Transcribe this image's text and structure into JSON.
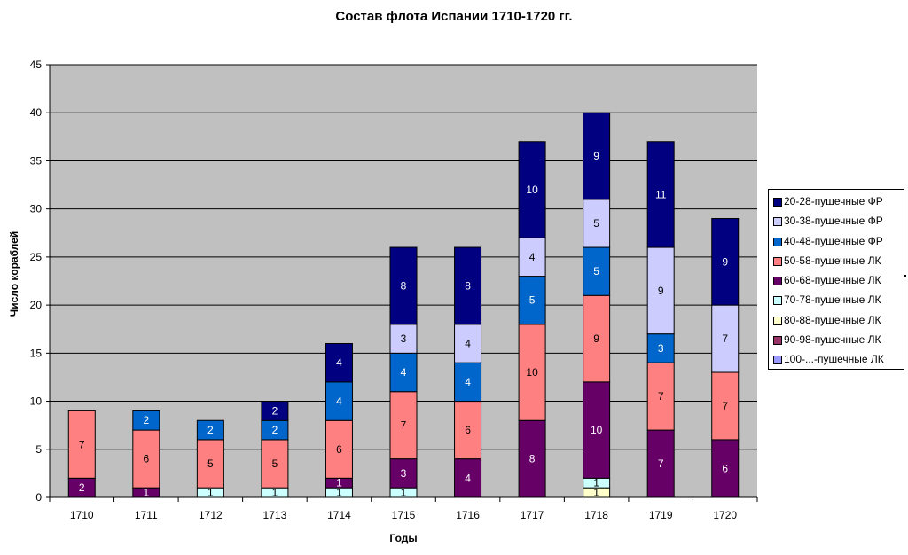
{
  "chart_data": {
    "type": "bar",
    "stacked": true,
    "title": "Состав флота Испании 1710-1720 гг.",
    "xlabel": "Годы",
    "ylabel": "Число кораблей",
    "ylim": [
      0,
      45
    ],
    "yticks": [
      "0",
      "5",
      "10",
      "15",
      "20",
      "25",
      "30",
      "35",
      "40",
      "45"
    ],
    "categories": [
      "1710",
      "1711",
      "1712",
      "1713",
      "1714",
      "1715",
      "1716",
      "1717",
      "1718",
      "1719",
      "1720"
    ],
    "grid": true,
    "legend_position": "right",
    "series": [
      {
        "name": "100-...-пушечные ЛК",
        "color": "#9999ff",
        "label_color": "#000000",
        "values": [
          0,
          0,
          0,
          0,
          0,
          0,
          0,
          0,
          0,
          0,
          0
        ]
      },
      {
        "name": "90-98-пушечные ЛК",
        "color": "#993366",
        "label_color": "#ffffff",
        "values": [
          0,
          0,
          0,
          0,
          0,
          0,
          0,
          0,
          0,
          0,
          0
        ]
      },
      {
        "name": "80-88-пушечные ЛК",
        "color": "#ffffcc",
        "label_color": "#000000",
        "values": [
          0,
          0,
          0,
          0,
          0,
          0,
          0,
          0,
          1,
          0,
          0
        ]
      },
      {
        "name": "70-78-пушечные ЛК",
        "color": "#ccffff",
        "label_color": "#000000",
        "values": [
          0,
          0,
          1,
          1,
          1,
          1,
          0,
          0,
          1,
          0,
          0
        ]
      },
      {
        "name": "60-68-пушечные ЛК",
        "color": "#660066",
        "label_color": "#ffffff",
        "values": [
          2,
          1,
          0,
          0,
          1,
          3,
          4,
          8,
          10,
          7,
          6
        ]
      },
      {
        "name": "50-58-пушечные ЛК",
        "color": "#ff8080",
        "label_color": "#000000",
        "values": [
          7,
          6,
          5,
          5,
          6,
          7,
          6,
          10,
          9,
          7,
          7
        ]
      },
      {
        "name": "40-48-пушечные ФР",
        "color": "#0066cc",
        "label_color": "#ffffff",
        "values": [
          0,
          2,
          2,
          2,
          4,
          4,
          4,
          5,
          5,
          3,
          0
        ]
      },
      {
        "name": "30-38-пушечные ФР",
        "color": "#ccccff",
        "label_color": "#000000",
        "values": [
          0,
          0,
          0,
          0,
          0,
          3,
          4,
          4,
          5,
          9,
          7
        ]
      },
      {
        "name": "20-28-пушечные ФР",
        "color": "#000080",
        "label_color": "#ffffff",
        "values": [
          0,
          0,
          0,
          2,
          4,
          8,
          8,
          10,
          9,
          11,
          9
        ]
      }
    ],
    "legend_order": [
      "20-28-пушечные ФР",
      "30-38-пушечные ФР",
      "40-48-пушечные ФР",
      "50-58-пушечные ЛК",
      "60-68-пушечные ЛК",
      "70-78-пушечные ЛК",
      "80-88-пушечные ЛК",
      "90-98-пушечные ЛК",
      "100-...-пушечные ЛК"
    ],
    "plot_background": "#c0c0c0"
  }
}
